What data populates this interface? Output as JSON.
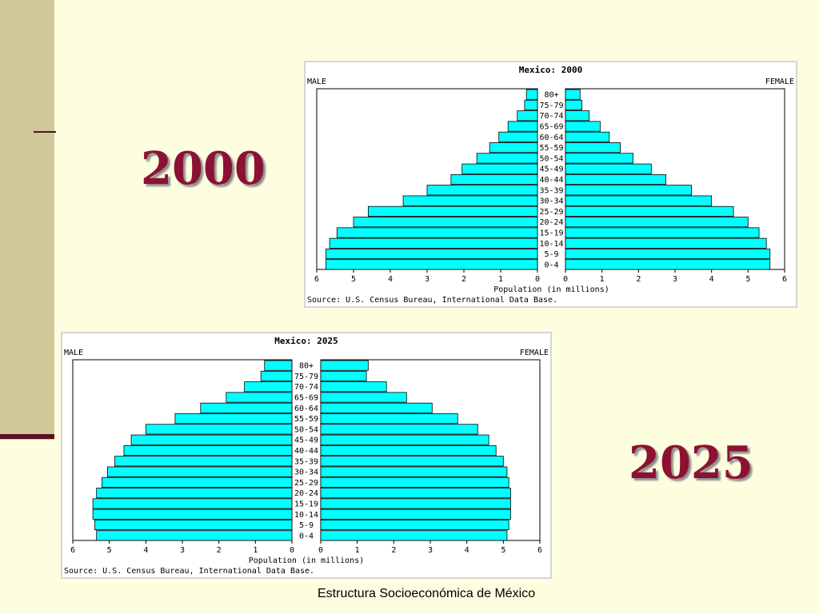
{
  "slide": {
    "year_label_a": "2000",
    "year_label_b": "2025",
    "footer": "Estructura Socioeconómica de México"
  },
  "colors": {
    "bar_fill": "#00ffff",
    "bar_stroke": "#000000",
    "year_text": "#8b1232",
    "background": "#fdfde0",
    "left_band": "#cfc89b"
  },
  "chart_data": [
    {
      "type": "bar",
      "title": "Mexico: 2000",
      "left_label": "MALE",
      "right_label": "FEMALE",
      "xlabel": "Population (in millions)",
      "source": "Source: U.S. Census Bureau, International Data Base.",
      "xlim": [
        0,
        6
      ],
      "ticks": [
        "6",
        "5",
        "4",
        "3",
        "2",
        "1",
        "0"
      ],
      "ticks_right": [
        "0",
        "1",
        "2",
        "3",
        "4",
        "5",
        "6"
      ],
      "categories": [
        "80+",
        "75-79",
        "70-74",
        "65-69",
        "60-64",
        "55-59",
        "50-54",
        "45-49",
        "40-44",
        "35-39",
        "30-34",
        "25-29",
        "20-24",
        "15-19",
        "10-14",
        "5-9",
        "0-4"
      ],
      "series": [
        {
          "name": "MALE",
          "values": [
            0.3,
            0.35,
            0.55,
            0.8,
            1.05,
            1.3,
            1.65,
            2.05,
            2.35,
            3.0,
            3.65,
            4.6,
            5.0,
            5.45,
            5.65,
            5.75,
            5.75
          ]
        },
        {
          "name": "FEMALE",
          "values": [
            0.4,
            0.45,
            0.65,
            0.95,
            1.2,
            1.5,
            1.85,
            2.35,
            2.75,
            3.45,
            4.0,
            4.6,
            5.0,
            5.3,
            5.5,
            5.6,
            5.6
          ]
        }
      ]
    },
    {
      "type": "bar",
      "title": "Mexico: 2025",
      "left_label": "MALE",
      "right_label": "FEMALE",
      "xlabel": "Population (in millions)",
      "source": "Source: U.S. Census Bureau, International Data Base.",
      "xlim": [
        0,
        6
      ],
      "ticks": [
        "6",
        "5",
        "4",
        "3",
        "2",
        "1",
        "0"
      ],
      "ticks_right": [
        "0",
        "1",
        "2",
        "3",
        "4",
        "5",
        "6"
      ],
      "categories": [
        "80+",
        "75-79",
        "70-74",
        "65-69",
        "60-64",
        "55-59",
        "50-54",
        "45-49",
        "40-44",
        "35-39",
        "30-34",
        "25-29",
        "20-24",
        "15-19",
        "10-14",
        "5-9",
        "0-4"
      ],
      "series": [
        {
          "name": "MALE",
          "values": [
            0.75,
            0.85,
            1.3,
            1.8,
            2.5,
            3.2,
            4.0,
            4.4,
            4.6,
            4.85,
            5.05,
            5.2,
            5.35,
            5.45,
            5.45,
            5.4,
            5.35
          ]
        },
        {
          "name": "FEMALE",
          "values": [
            1.3,
            1.25,
            1.8,
            2.35,
            3.05,
            3.75,
            4.3,
            4.6,
            4.8,
            5.0,
            5.1,
            5.15,
            5.2,
            5.2,
            5.2,
            5.15,
            5.1
          ]
        }
      ]
    }
  ]
}
